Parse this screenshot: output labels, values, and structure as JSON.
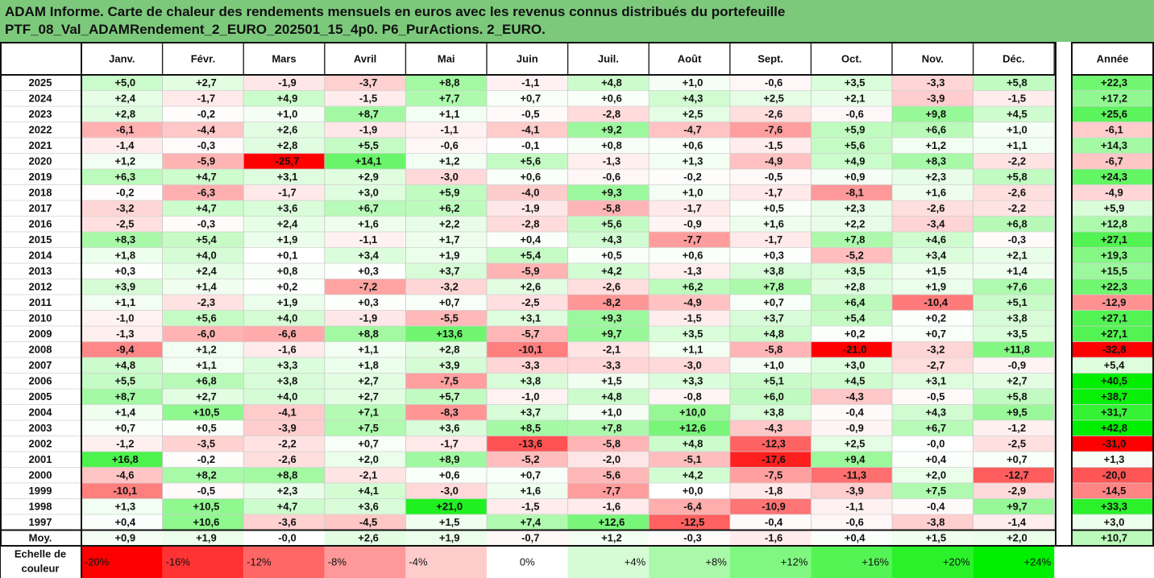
{
  "title_line1": "ADAM Informe. Carte de chaleur des rendements mensuels en euros avec les revenus connus distribués du portefeuille",
  "title_line2": "PTF_08_Val_ADAMRendement_2_EURO_202501_15_4p0. P6_PurActions. 2_EURO.",
  "chart_data": {
    "type": "heatmap",
    "columns": [
      "Janv.",
      "Févr.",
      "Mars",
      "Avril",
      "Mai",
      "Juin",
      "Juil.",
      "Août",
      "Sept.",
      "Oct.",
      "Nov.",
      "Déc."
    ],
    "year_column": "Année",
    "rows": [
      {
        "year": "2025",
        "values": [
          "+5,0",
          "+2,7",
          "-1,9",
          "-3,7",
          "+8,8",
          "-1,1",
          "+4,8",
          "+1,0",
          "-0,6",
          "+3,5",
          "-3,3",
          "+5,8"
        ],
        "annual": "+22,3"
      },
      {
        "year": "2024",
        "values": [
          "+2,4",
          "-1,7",
          "+4,9",
          "-1,5",
          "+7,7",
          "+0,7",
          "+0,6",
          "+4,3",
          "+2,5",
          "+2,1",
          "-3,9",
          "-1,5"
        ],
        "annual": "+17,2"
      },
      {
        "year": "2023",
        "values": [
          "+2,8",
          "-0,2",
          "+1,0",
          "+8,7",
          "+1,1",
          "-0,5",
          "-2,8",
          "+2,5",
          "-2,6",
          "-0,6",
          "+9,8",
          "+4,5"
        ],
        "annual": "+25,6"
      },
      {
        "year": "2022",
        "values": [
          "-6,1",
          "-4,4",
          "+2,6",
          "-1,9",
          "-1,1",
          "-4,1",
          "+9,2",
          "-4,7",
          "-7,6",
          "+5,9",
          "+6,6",
          "+1,0"
        ],
        "annual": "-6,1"
      },
      {
        "year": "2021",
        "values": [
          "-1,4",
          "-0,3",
          "+2,8",
          "+5,5",
          "-0,6",
          "-0,1",
          "+0,8",
          "+0,6",
          "-1,5",
          "+5,6",
          "+1,2",
          "+1,1"
        ],
        "annual": "+14,3"
      },
      {
        "year": "2020",
        "values": [
          "+1,2",
          "-5,9",
          "-25,7",
          "+14,1",
          "+1,2",
          "+5,6",
          "-1,3",
          "+1,3",
          "-4,9",
          "+4,9",
          "+8,3",
          "-2,2"
        ],
        "annual": "-6,7"
      },
      {
        "year": "2019",
        "values": [
          "+6,3",
          "+4,7",
          "+3,1",
          "+2,9",
          "-3,0",
          "+0,6",
          "-0,6",
          "-0,2",
          "-0,5",
          "+0,9",
          "+2,3",
          "+5,8"
        ],
        "annual": "+24,3"
      },
      {
        "year": "2018",
        "values": [
          "-0,2",
          "-6,3",
          "-1,7",
          "+3,0",
          "+5,9",
          "-4,0",
          "+9,3",
          "+1,0",
          "-1,7",
          "-8,1",
          "+1,6",
          "-2,6"
        ],
        "annual": "-4,9"
      },
      {
        "year": "2017",
        "values": [
          "-3,2",
          "+4,7",
          "+3,6",
          "+6,7",
          "+6,2",
          "-1,9",
          "-5,8",
          "-1,7",
          "+0,5",
          "+2,3",
          "-2,6",
          "-2,2"
        ],
        "annual": "+5,9"
      },
      {
        "year": "2016",
        "values": [
          "-2,5",
          "-0,3",
          "+2,4",
          "+1,6",
          "+2,2",
          "-2,8",
          "+5,6",
          "-0,9",
          "+1,6",
          "+2,2",
          "-3,4",
          "+6,8"
        ],
        "annual": "+12,8"
      },
      {
        "year": "2015",
        "values": [
          "+8,3",
          "+5,4",
          "+1,9",
          "-1,1",
          "+1,7",
          "+0,4",
          "+4,3",
          "-7,7",
          "-1,7",
          "+7,8",
          "+4,6",
          "-0,3"
        ],
        "annual": "+27,1"
      },
      {
        "year": "2014",
        "values": [
          "+1,8",
          "+4,0",
          "+0,1",
          "+3,4",
          "+1,9",
          "+5,4",
          "+0,5",
          "+0,6",
          "+0,3",
          "-5,2",
          "+3,4",
          "+2,1"
        ],
        "annual": "+19,3"
      },
      {
        "year": "2013",
        "values": [
          "+0,3",
          "+2,4",
          "+0,8",
          "+0,3",
          "+3,7",
          "-5,9",
          "+4,2",
          "-1,3",
          "+3,8",
          "+3,5",
          "+1,5",
          "+1,4"
        ],
        "annual": "+15,5"
      },
      {
        "year": "2012",
        "values": [
          "+3,9",
          "+1,4",
          "+0,2",
          "-7,2",
          "-3,2",
          "+2,6",
          "-2,6",
          "+6,2",
          "+7,8",
          "+2,8",
          "+1,9",
          "+7,6"
        ],
        "annual": "+22,3"
      },
      {
        "year": "2011",
        "values": [
          "+1,1",
          "-2,3",
          "+1,9",
          "+0,3",
          "+0,7",
          "-2,5",
          "-8,2",
          "-4,9",
          "+0,7",
          "+6,4",
          "-10,4",
          "+5,1"
        ],
        "annual": "-12,9"
      },
      {
        "year": "2010",
        "values": [
          "-1,0",
          "+5,6",
          "+4,0",
          "-1,9",
          "-5,5",
          "+3,1",
          "+9,3",
          "-1,5",
          "+3,7",
          "+5,4",
          "+0,2",
          "+3,8"
        ],
        "annual": "+27,1"
      },
      {
        "year": "2009",
        "values": [
          "-1,3",
          "-6,0",
          "-6,6",
          "+8,8",
          "+13,6",
          "-5,7",
          "+9,7",
          "+3,5",
          "+4,8",
          "+0,2",
          "+0,7",
          "+3,5"
        ],
        "annual": "+27,1"
      },
      {
        "year": "2008",
        "values": [
          "-9,4",
          "+1,2",
          "-1,6",
          "+1,1",
          "+2,8",
          "-10,1",
          "-2,1",
          "+1,1",
          "-5,8",
          "-21,0",
          "-3,2",
          "+11,8"
        ],
        "annual": "-32,8"
      },
      {
        "year": "2007",
        "values": [
          "+4,8",
          "+1,1",
          "+3,3",
          "+1,8",
          "+3,9",
          "-3,3",
          "-3,3",
          "-3,0",
          "+1,0",
          "+3,0",
          "-2,7",
          "-0,9"
        ],
        "annual": "+5,4"
      },
      {
        "year": "2006",
        "values": [
          "+5,5",
          "+6,8",
          "+3,8",
          "+2,7",
          "-7,5",
          "+3,8",
          "+1,5",
          "+3,3",
          "+5,1",
          "+4,5",
          "+3,1",
          "+2,7"
        ],
        "annual": "+40,5"
      },
      {
        "year": "2005",
        "values": [
          "+8,7",
          "+2,7",
          "+4,0",
          "+2,7",
          "+5,7",
          "-1,0",
          "+4,8",
          "-0,8",
          "+6,0",
          "-4,3",
          "-0,5",
          "+5,8"
        ],
        "annual": "+38,7"
      },
      {
        "year": "2004",
        "values": [
          "+1,4",
          "+10,5",
          "-4,1",
          "+7,1",
          "-8,3",
          "+3,7",
          "+1,0",
          "+10,0",
          "+3,8",
          "-0,4",
          "+4,3",
          "+9,5"
        ],
        "annual": "+31,7"
      },
      {
        "year": "2003",
        "values": [
          "+0,7",
          "+0,5",
          "-3,9",
          "+7,5",
          "+3,6",
          "+8,5",
          "+7,8",
          "+12,6",
          "-4,3",
          "-0,9",
          "+6,7",
          "-1,2"
        ],
        "annual": "+42,8"
      },
      {
        "year": "2002",
        "values": [
          "-1,2",
          "-3,5",
          "-2,2",
          "+0,7",
          "-1,7",
          "-13,6",
          "-5,8",
          "+4,8",
          "-12,3",
          "+2,5",
          "-0,0",
          "-2,5"
        ],
        "annual": "-31,0"
      },
      {
        "year": "2001",
        "values": [
          "+16,8",
          "-0,2",
          "-2,6",
          "+2,0",
          "+8,9",
          "-5,2",
          "-2,0",
          "-5,1",
          "-17,6",
          "+9,4",
          "+0,4",
          "+0,7"
        ],
        "annual": "+1,3"
      },
      {
        "year": "2000",
        "values": [
          "-4,6",
          "+8,2",
          "+8,8",
          "-2,1",
          "+0,6",
          "+0,7",
          "-5,6",
          "+4,2",
          "-7,5",
          "-11,3",
          "+2,0",
          "-12,7"
        ],
        "annual": "-20,0"
      },
      {
        "year": "1999",
        "values": [
          "-10,1",
          "-0,5",
          "+2,3",
          "+4,1",
          "-3,0",
          "+1,6",
          "-7,7",
          "+0,0",
          "-1,8",
          "-3,9",
          "+7,5",
          "-2,9"
        ],
        "annual": "-14,5"
      },
      {
        "year": "1998",
        "values": [
          "+1,3",
          "+10,5",
          "+4,7",
          "+3,6",
          "+21,0",
          "-1,5",
          "-1,6",
          "-6,4",
          "-10,9",
          "-1,1",
          "-0,4",
          "+9,7"
        ],
        "annual": "+33,3"
      },
      {
        "year": "1997",
        "values": [
          "+0,4",
          "+10,6",
          "-3,6",
          "-4,5",
          "+1,5",
          "+7,4",
          "+12,6",
          "-12,5",
          "-0,4",
          "-0,6",
          "-3,8",
          "-1,4"
        ],
        "annual": "+3,0"
      }
    ],
    "average": {
      "label": "Moy.",
      "values": [
        "+0,9",
        "+1,9",
        "-0,0",
        "+2,6",
        "+1,9",
        "-0,7",
        "+1,2",
        "-0,3",
        "-1,6",
        "+0,4",
        "+1,5",
        "+2,0"
      ],
      "annual": "+10,7"
    },
    "color_scale": {
      "label": "Echelle de couleur",
      "stops": [
        "-20%",
        "-16%",
        "-12%",
        "-8%",
        "-4%",
        "0%",
        "+4%",
        "+8%",
        "+12%",
        "+16%",
        "+20%",
        "+24%"
      ]
    },
    "colors": {
      "negative": "#ff0000",
      "neutral": "#ffffff",
      "positive": "#00ee00",
      "title_bg": "#7cc97c"
    }
  }
}
